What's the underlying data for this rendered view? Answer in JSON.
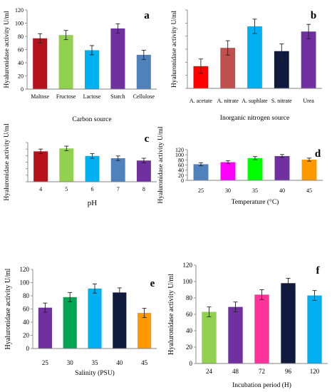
{
  "chart_data": [
    {
      "panel": "a",
      "type": "bar",
      "ylabel": "Hyaluronidase activity U/ml",
      "xlabel": "Carbon source",
      "ylim": [
        0,
        120
      ],
      "yticks": [
        0,
        20,
        40,
        60,
        80,
        100,
        120
      ],
      "show_ytick_labels": true,
      "categories": [
        "Maltose",
        "Fructose",
        "Lactose",
        "Starch",
        "Cellulose"
      ],
      "values": [
        77,
        82,
        59,
        92,
        52
      ],
      "errors": [
        7,
        7,
        7,
        7,
        7
      ],
      "colors": [
        "#b5121b",
        "#92d050",
        "#00b0f0",
        "#7030a0",
        "#4f81bd"
      ]
    },
    {
      "panel": "b",
      "type": "bar",
      "ylabel": "Hyaluronidase activity U/ml",
      "xlabel": "Inorganic nitrogen source",
      "ylim": [
        0,
        120
      ],
      "yticks": [
        0,
        20,
        40,
        60,
        80,
        100,
        120
      ],
      "show_ytick_labels": false,
      "categories": [
        "A. acetate",
        "A. nitrate",
        "A. suphlate",
        "S. nitrate",
        "Urea"
      ],
      "values": [
        34,
        62,
        95,
        57,
        87
      ],
      "errors": [
        11,
        11,
        11,
        11,
        11
      ],
      "colors": [
        "#ff0000",
        "#c0504d",
        "#00b0f0",
        "#0f1a3e",
        "#7030a0"
      ]
    },
    {
      "panel": "c",
      "type": "bar",
      "ylabel": "Hyaluronidase activity U/ml",
      "xlabel": "pH",
      "ylim": [
        0,
        120
      ],
      "yticks": [
        0,
        20,
        40,
        60,
        80,
        100,
        120
      ],
      "show_ytick_labels": false,
      "categories": [
        "4",
        "5",
        "6",
        "7",
        "8"
      ],
      "values": [
        93,
        102,
        79,
        72,
        65
      ],
      "errors": [
        7,
        7,
        7,
        7,
        7
      ],
      "colors": [
        "#b5121b",
        "#92d050",
        "#00b0f0",
        "#4f81bd",
        "#7030a0"
      ]
    },
    {
      "panel": "d",
      "type": "bar",
      "ylabel": "Hyaluronidase activity U/ml",
      "xlabel": "Temperature (°C)",
      "ylim": [
        0,
        120
      ],
      "yticks": [
        0,
        20,
        40,
        60,
        80,
        100,
        120
      ],
      "show_ytick_labels": true,
      "categories": [
        "25",
        "30",
        "35",
        "40",
        "45"
      ],
      "values": [
        63,
        71,
        87,
        95,
        81
      ],
      "errors": [
        6,
        6,
        6,
        6,
        6
      ],
      "colors": [
        "#4f81bd",
        "#ff00ff",
        "#00ff00",
        "#7030a0",
        "#ff9900"
      ]
    },
    {
      "panel": "e",
      "type": "bar",
      "ylabel": "Hyaluronidase activity U/ml",
      "xlabel": "Salinity (PSU)",
      "ylim": [
        0,
        120
      ],
      "yticks": [
        0,
        20,
        40,
        60,
        80,
        100,
        120
      ],
      "show_ytick_labels": true,
      "categories": [
        "25",
        "30",
        "35",
        "40",
        "45"
      ],
      "values": [
        62,
        78,
        91,
        85,
        54
      ],
      "errors": [
        7,
        7,
        7,
        7,
        7
      ],
      "colors": [
        "#7030a0",
        "#00a651",
        "#00b0f0",
        "#0f1a3e",
        "#ff9900"
      ]
    },
    {
      "panel": "f",
      "type": "bar",
      "ylabel": "Hyaluronidase activity U/ml",
      "xlabel": "Incubation period (H)",
      "ylim": [
        0,
        120
      ],
      "yticks": [
        0,
        20,
        40,
        60,
        80,
        100,
        120
      ],
      "show_ytick_labels": true,
      "categories": [
        "24",
        "48",
        "72",
        "96",
        "120"
      ],
      "values": [
        63,
        69,
        84,
        98,
        83
      ],
      "errors": [
        6,
        6,
        6,
        6,
        6
      ],
      "colors": [
        "#92d050",
        "#7030a0",
        "#ff3399",
        "#0f1a3e",
        "#00b0f0"
      ]
    }
  ]
}
